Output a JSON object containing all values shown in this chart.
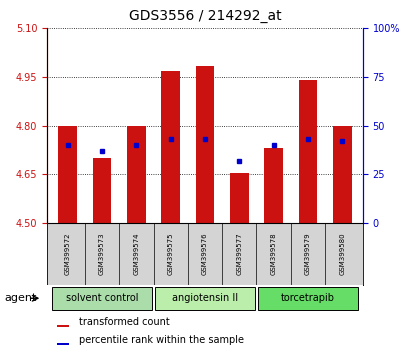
{
  "title": "GDS3556 / 214292_at",
  "samples": [
    "GSM399572",
    "GSM399573",
    "GSM399574",
    "GSM399575",
    "GSM399576",
    "GSM399577",
    "GSM399578",
    "GSM399579",
    "GSM399580"
  ],
  "transformed_count": [
    4.8,
    4.7,
    4.8,
    4.97,
    4.985,
    4.655,
    4.73,
    4.94,
    4.8
  ],
  "percentile_rank": [
    40,
    37,
    40,
    43,
    43,
    32,
    40,
    43,
    42
  ],
  "ylim_left": [
    4.5,
    5.1
  ],
  "ylim_right": [
    0,
    100
  ],
  "yticks_left": [
    4.5,
    4.65,
    4.8,
    4.95,
    5.1
  ],
  "yticks_right": [
    0,
    25,
    50,
    75,
    100
  ],
  "bar_color": "#cc1111",
  "dot_color": "#0000cc",
  "grid_color": "#000000",
  "agent_groups": [
    {
      "label": "solvent control",
      "start": 0,
      "end": 3,
      "color": "#aaddaa"
    },
    {
      "label": "angiotensin II",
      "start": 3,
      "end": 6,
      "color": "#bbeeaa"
    },
    {
      "label": "torcetrapib",
      "start": 6,
      "end": 9,
      "color": "#66dd66"
    }
  ],
  "legend_items": [
    {
      "label": "transformed count",
      "color": "#cc1111"
    },
    {
      "label": "percentile rank within the sample",
      "color": "#0000cc"
    }
  ],
  "background_color": "#ffffff",
  "label_bg_color": "#d4d4d4",
  "left_axis_color": "#cc1111",
  "right_axis_color": "#0000cc",
  "bar_width": 0.55,
  "base_value": 4.5,
  "title_fontsize": 10,
  "tick_fontsize": 7,
  "sample_fontsize": 5,
  "agent_fontsize": 7,
  "legend_fontsize": 7
}
